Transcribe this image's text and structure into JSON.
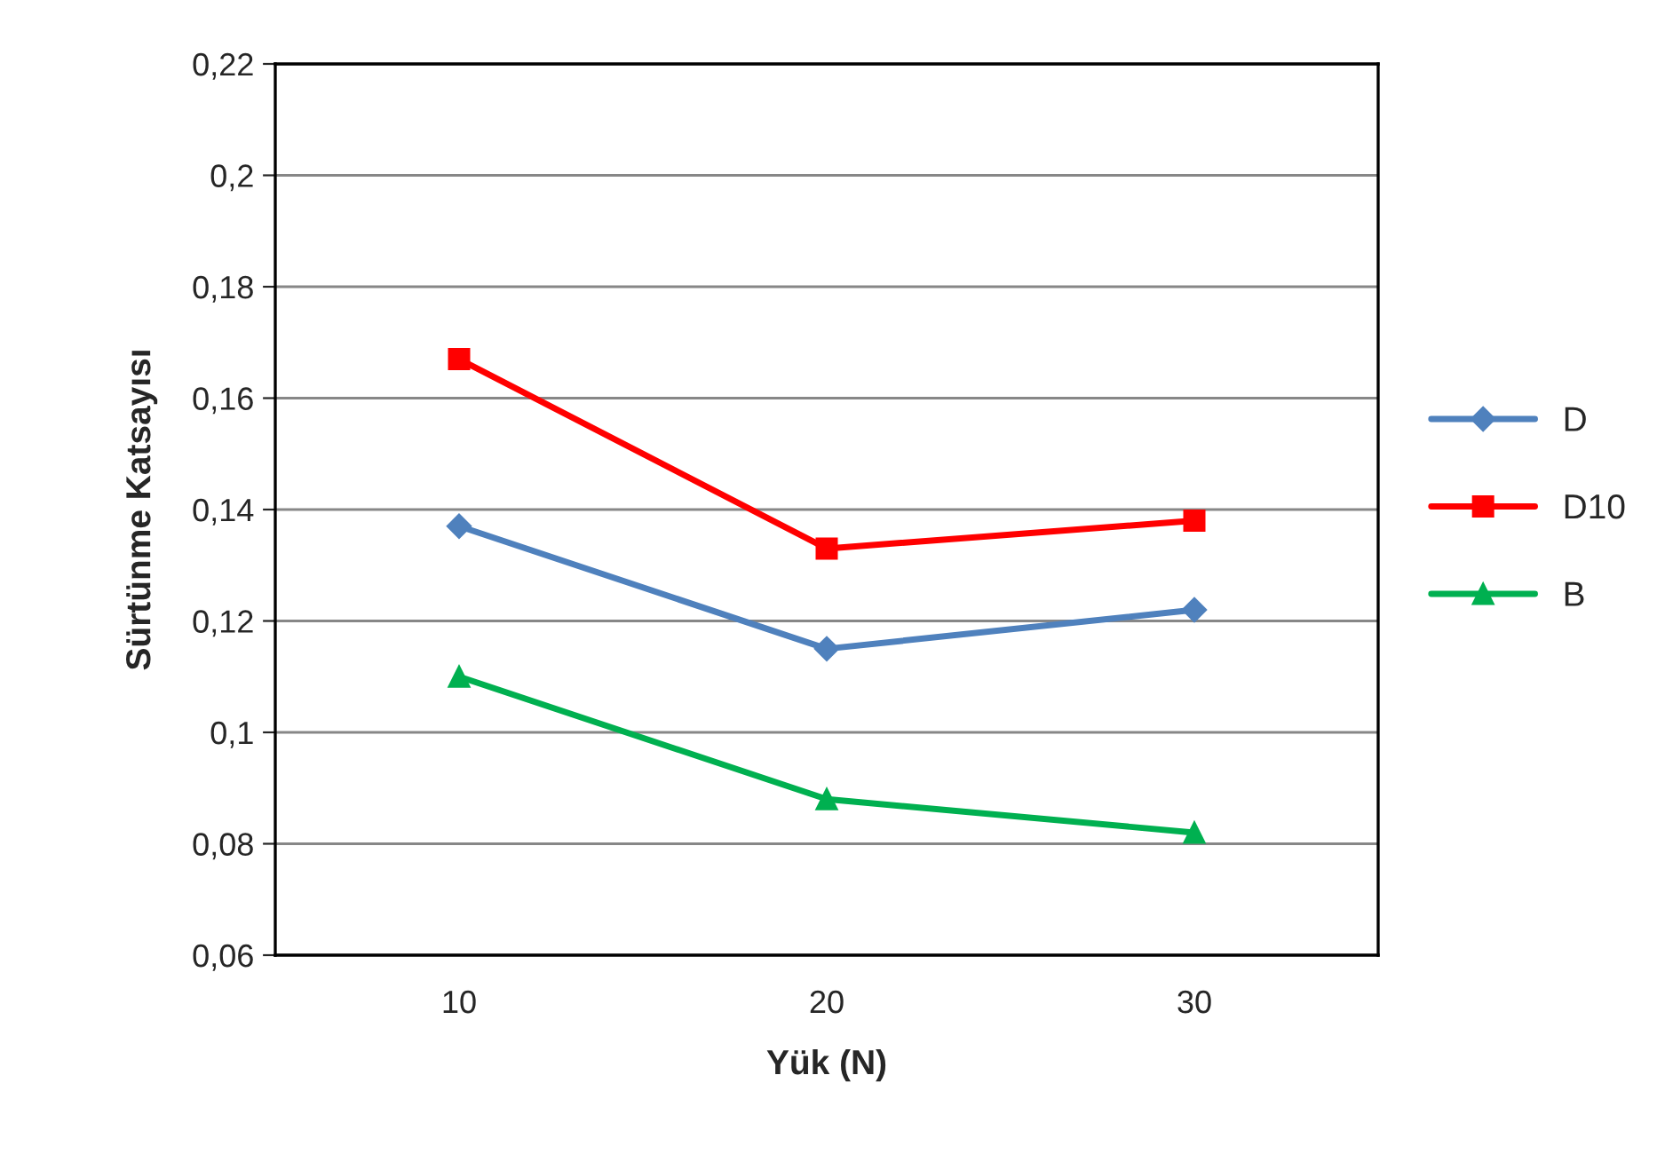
{
  "chart_data": {
    "type": "line",
    "xlabel": "Yük (N)",
    "ylabel": "Sürtünme Katsayısı",
    "categories": [
      "10",
      "20",
      "30"
    ],
    "series": [
      {
        "name": "D",
        "color": "#4f81bd",
        "values": [
          0.137,
          0.115,
          0.122
        ],
        "marker": "diamond"
      },
      {
        "name": "D10",
        "color": "#ff0000",
        "values": [
          0.167,
          0.133,
          0.138
        ],
        "marker": "square"
      },
      {
        "name": "B",
        "color": "#00b050",
        "values": [
          0.11,
          0.088,
          0.082
        ],
        "marker": "triangle"
      }
    ],
    "ylim": [
      0.06,
      0.22
    ],
    "yticks": [
      {
        "value": 0.06,
        "label": "0,06"
      },
      {
        "value": 0.08,
        "label": "0,08"
      },
      {
        "value": 0.1,
        "label": "0,1"
      },
      {
        "value": 0.12,
        "label": "0,12"
      },
      {
        "value": 0.14,
        "label": "0,14"
      },
      {
        "value": 0.16,
        "label": "0,16"
      },
      {
        "value": 0.18,
        "label": "0,18"
      },
      {
        "value": 0.2,
        "label": "0,2"
      },
      {
        "value": 0.22,
        "label": "0,22"
      }
    ],
    "grid": "y",
    "legend": "right",
    "line_style": "solid"
  }
}
